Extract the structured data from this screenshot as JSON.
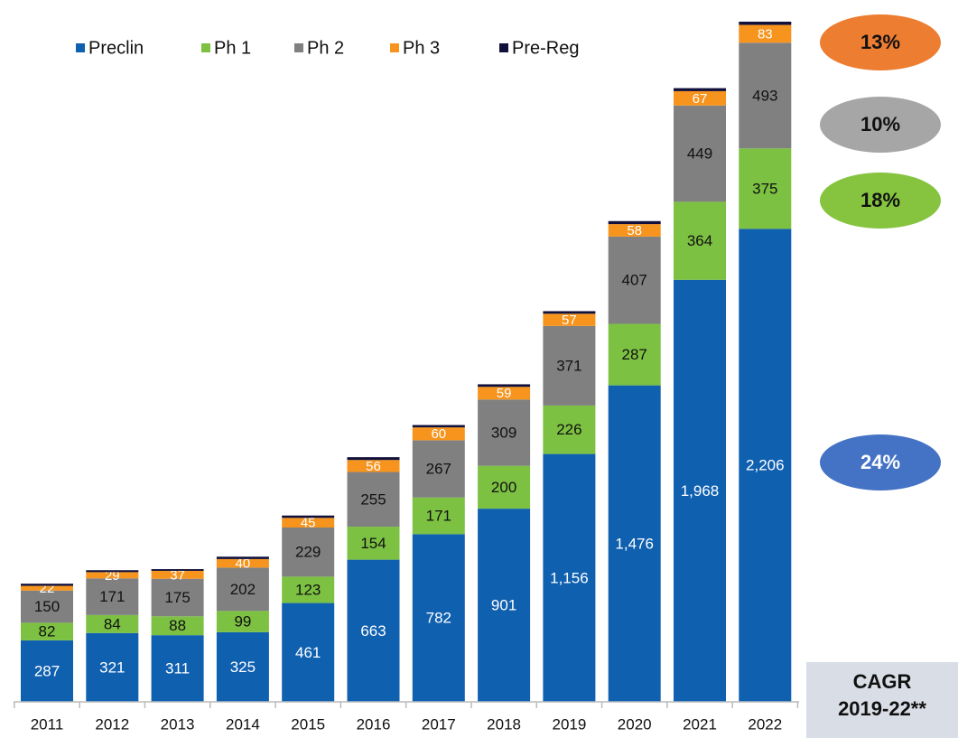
{
  "chart_data": {
    "type": "stacked_bar",
    "categories": [
      "2011",
      "2012",
      "2013",
      "2014",
      "2015",
      "2016",
      "2017",
      "2018",
      "2019",
      "2020",
      "2021",
      "2022"
    ],
    "series": [
      {
        "name": "Preclin",
        "color": "#1060b0",
        "label_color": "#ffffff",
        "values": [
          287,
          321,
          311,
          325,
          461,
          663,
          782,
          901,
          1156,
          1476,
          1968,
          2206
        ],
        "value_labels": [
          "287",
          "321",
          "311",
          "325",
          "461",
          "663",
          "782",
          "901",
          "1,156",
          "1,476",
          "1,968",
          "2,206"
        ]
      },
      {
        "name": "Ph 1",
        "color": "#7cc142",
        "label_color": "#111111",
        "values": [
          82,
          84,
          88,
          99,
          123,
          154,
          171,
          200,
          226,
          287,
          364,
          375
        ]
      },
      {
        "name": "Ph 2",
        "color": "#808080",
        "label_color": "#111111",
        "values": [
          150,
          171,
          175,
          202,
          229,
          255,
          267,
          309,
          371,
          407,
          449,
          493
        ]
      },
      {
        "name": "Ph 3",
        "color": "#f7941d",
        "label_color": "#ffffff",
        "values": [
          22,
          29,
          37,
          40,
          45,
          56,
          60,
          59,
          57,
          58,
          67,
          83
        ]
      },
      {
        "name": "Pre-Reg",
        "color": "#10103a",
        "values": [
          10,
          9,
          8,
          11,
          11,
          13,
          11,
          12,
          12,
          14,
          14,
          15
        ]
      }
    ],
    "legend": "top-left",
    "annotations": [
      {
        "text": "13%",
        "color": "#ed7d31",
        "text_color": "#111111"
      },
      {
        "text": "10%",
        "color": "#a6a6a6",
        "text_color": "#111111"
      },
      {
        "text": "18%",
        "color": "#86c440",
        "text_color": "#111111"
      },
      {
        "text": "24%",
        "color": "#4472c4",
        "text_color": "#ffffff"
      }
    ],
    "cagr_box": [
      "CAGR",
      "2019-22**"
    ]
  }
}
